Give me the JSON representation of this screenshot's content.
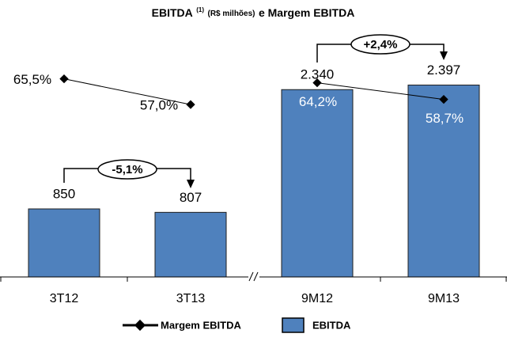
{
  "chart_data": {
    "type": "bar_line",
    "title": [
      "EBITDA",
      "(1)",
      "(R$ milhões)",
      "e Margem EBITDA"
    ],
    "categories": [
      "3T12",
      "3T13",
      "9M12",
      "9M13"
    ],
    "series": [
      {
        "name": "EBITDA",
        "type": "bar",
        "color": "#4f81bd",
        "values": [
          850,
          807,
          2340,
          2397
        ],
        "value_labels": [
          "850",
          "807",
          "2.340",
          "2.397"
        ]
      },
      {
        "name": "Margem EBITDA",
        "type": "line",
        "axis": "y2",
        "color": "#000000",
        "values": [
          65.5,
          57.0,
          64.2,
          58.7
        ],
        "value_labels": [
          "65,5%",
          "57,0%",
          "64,2%",
          "58,7%"
        ]
      }
    ],
    "annotations": [
      "-5,1%",
      "+2,4%"
    ],
    "ylim": [
      0,
      3400
    ],
    "y2lim": [
      0,
      90
    ],
    "legend": "bottom"
  }
}
